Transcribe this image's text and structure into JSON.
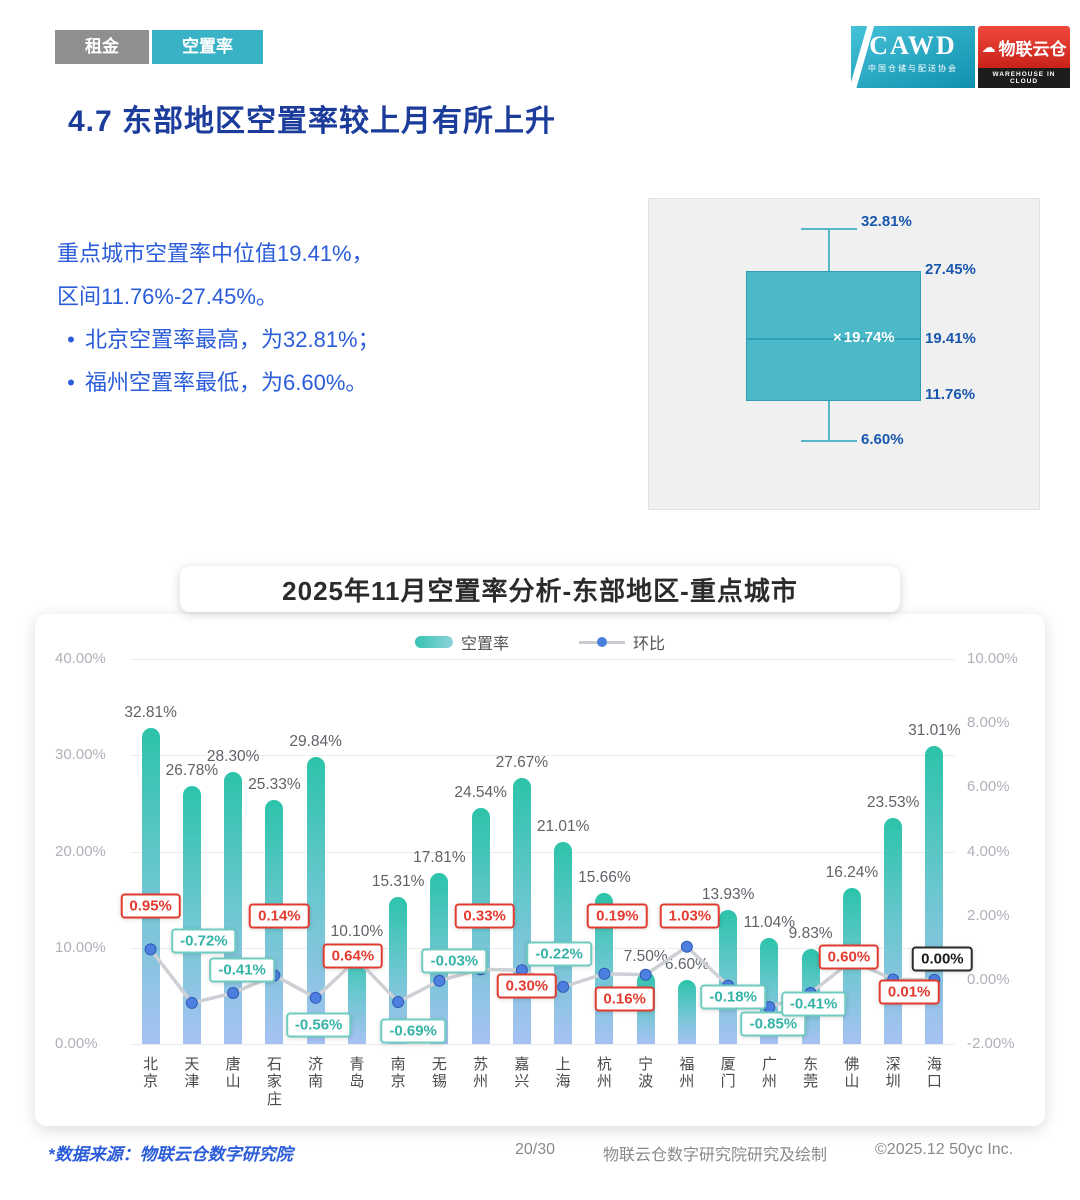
{
  "page": {
    "tabs": [
      {
        "label": "租金"
      },
      {
        "label": "空置率",
        "active": true
      }
    ],
    "title": "4.7 东部地区空置率较上月有所上升",
    "summary": {
      "line1": "重点城市空置率中位值19.41%，",
      "line2": "区间11.76%-27.45%。",
      "bullets": [
        "北京空置率最高，为32.81%；",
        "福州空置率最低，为6.60%。"
      ]
    },
    "logos": {
      "cawd": "CAWD",
      "cawd_sub": "中国仓储与配送协会",
      "wlyc": "物联云仓",
      "wlyc_sub": "WAREHOUSE IN CLOUD"
    },
    "footer": {
      "source": "*数据来源：物联云仓数字研究院",
      "page_num": "20/30",
      "credit": "物联云仓数字研究院研究及绘制",
      "copyright": "©2025.12 50yc Inc."
    },
    "colors": {
      "accent_teal": "#38b2c4",
      "title_blue": "#1b3c9b",
      "body_blue": "#2b5cd9",
      "positive_red": "#e23b30",
      "negative_teal": "#35b3a7"
    }
  },
  "chart_data": [
    {
      "type": "boxplot",
      "orientation": "vertical",
      "values": {
        "max": 32.81,
        "q3": 27.45,
        "mean": 19.74,
        "median": 19.41,
        "q1": 11.76,
        "min": 6.6
      },
      "labels": {
        "max": "32.81%",
        "q3": "27.45%",
        "mean": "19.74%",
        "median": "19.41%",
        "q1": "11.76%",
        "min": "6.60%"
      }
    },
    {
      "type": "bar+line",
      "title": "2025年11月空置率分析-东部地区-重点城市",
      "legend": [
        "空置率",
        "环比"
      ],
      "categories": [
        "北京",
        "天津",
        "唐山",
        "石家庄",
        "济南",
        "青岛",
        "南京",
        "无锡",
        "苏州",
        "嘉兴",
        "上海",
        "杭州",
        "宁波",
        "福州",
        "厦门",
        "广州",
        "东莞",
        "佛山",
        "深圳",
        "海口"
      ],
      "series": [
        {
          "name": "空置率",
          "type": "bar",
          "axis": "left",
          "values": [
            32.81,
            26.78,
            28.3,
            25.33,
            29.84,
            10.1,
            15.31,
            17.81,
            24.54,
            27.67,
            21.01,
            15.66,
            7.5,
            6.6,
            13.93,
            11.04,
            9.83,
            16.24,
            23.53,
            31.01
          ]
        },
        {
          "name": "环比",
          "type": "line",
          "axis": "right",
          "values": [
            0.95,
            -0.72,
            -0.41,
            0.14,
            -0.56,
            0.64,
            -0.69,
            -0.03,
            0.33,
            0.3,
            -0.22,
            0.19,
            0.16,
            1.03,
            -0.18,
            -0.85,
            -0.41,
            0.6,
            0.01,
            0.0
          ]
        }
      ],
      "left_axis": {
        "ticks": [
          "40.00%",
          "30.00%",
          "20.00%",
          "10.00%",
          "0.00%"
        ],
        "min": 0,
        "max": 40
      },
      "right_axis": {
        "ticks": [
          "10.00%",
          "8.00%",
          "6.00%",
          "4.00%",
          "2.00%",
          "0.00%",
          "-2.00%"
        ],
        "min": -2,
        "max": 10
      },
      "grid": true,
      "legend_position": "top"
    }
  ]
}
